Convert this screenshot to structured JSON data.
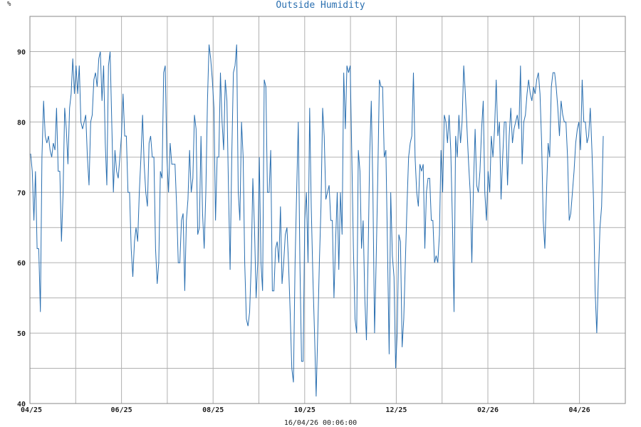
{
  "chart_data": {
    "type": "line",
    "title": "Outside Humidity",
    "ylabel": "%",
    "footer": "16/04/26 00:06:00",
    "ylim": [
      40,
      95
    ],
    "y_ticks": [
      40,
      50,
      60,
      70,
      80,
      90
    ],
    "x_ticks": [
      "04/25",
      "06/25",
      "08/25",
      "10/25",
      "12/25",
      "02/26",
      "04/26"
    ],
    "grid": true,
    "colors": {
      "line": "#2a6fb0",
      "grid": "#b0b0b0",
      "title": "#2a6fb0"
    },
    "series": [
      {
        "values": [
          75.5,
          73,
          66,
          73,
          62,
          62,
          53,
          75,
          83,
          78,
          77,
          78,
          76,
          75,
          77,
          76,
          82,
          73,
          73,
          63,
          70,
          82,
          79,
          74,
          82,
          84,
          89,
          84,
          88,
          84,
          88,
          80,
          79,
          80,
          81,
          75,
          71,
          80,
          81,
          86,
          87,
          85,
          89,
          90,
          83,
          88,
          77,
          71,
          88,
          90,
          80,
          70,
          76,
          73,
          72,
          75,
          78,
          84,
          78,
          78,
          70,
          70,
          62,
          58,
          63,
          65,
          63,
          70,
          75,
          81,
          74,
          70,
          68,
          77,
          78,
          75,
          75,
          62,
          57,
          60,
          73,
          72,
          87,
          88,
          75,
          70,
          77,
          74,
          74,
          74,
          68,
          60,
          60,
          66,
          67,
          56,
          66,
          69,
          76,
          70,
          72,
          81,
          79,
          64,
          65,
          78,
          67,
          62,
          70,
          83,
          91,
          89,
          86,
          82,
          66,
          75,
          75,
          87,
          80,
          76,
          86,
          83,
          70,
          59,
          75,
          87,
          88,
          91,
          70,
          66,
          80,
          75,
          60,
          52,
          51,
          53,
          60,
          72,
          65,
          55,
          60,
          75,
          60,
          56,
          86,
          85,
          70,
          70,
          76,
          56,
          56,
          62,
          63,
          60,
          68,
          57,
          60,
          64,
          65,
          60,
          53,
          45,
          43,
          60,
          70,
          80,
          60,
          46,
          46,
          66,
          70,
          60,
          82,
          68,
          58,
          50,
          41,
          50,
          60,
          68,
          82,
          78,
          69,
          70,
          71,
          66,
          66,
          55,
          63,
          70,
          59,
          70,
          64,
          87,
          79,
          88,
          87,
          88,
          75,
          62,
          52,
          50,
          76,
          73,
          62,
          66,
          55,
          49,
          60,
          75,
          83,
          70,
          50,
          60,
          72,
          86,
          85,
          85,
          75,
          76,
          62,
          47,
          70,
          61,
          58,
          45,
          50,
          64,
          63,
          48,
          52,
          60,
          68,
          75,
          77,
          78,
          87,
          75,
          70,
          68,
          74,
          73,
          74,
          62,
          70,
          72,
          72,
          66,
          66,
          60,
          61,
          60,
          64,
          76,
          70,
          81,
          80,
          77,
          81,
          76,
          66,
          53,
          78,
          75,
          81,
          77,
          80,
          88,
          84,
          79,
          74,
          70,
          60,
          71,
          79,
          71,
          70,
          73,
          79,
          83,
          70,
          66,
          73,
          70,
          78,
          75,
          79,
          86,
          78,
          80,
          69,
          75,
          80,
          80,
          71,
          78,
          82,
          77,
          79,
          80,
          81,
          79,
          88,
          74,
          80,
          81,
          84,
          86,
          84,
          83,
          85,
          84,
          86,
          87,
          84,
          77,
          66,
          62,
          70,
          77,
          75,
          85,
          87,
          87,
          85,
          82,
          78,
          83,
          81,
          80,
          80,
          75,
          66,
          67,
          70,
          73,
          77,
          79,
          80,
          76,
          86,
          80,
          80,
          77,
          78,
          82,
          76,
          69,
          56,
          50,
          58,
          65,
          68,
          78
        ]
      }
    ]
  }
}
